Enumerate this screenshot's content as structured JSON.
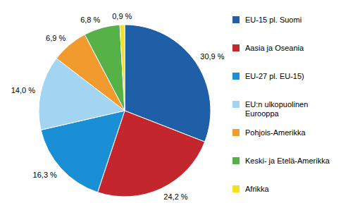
{
  "chart_data": {
    "type": "pie",
    "categories": [
      "EU-15 pl. Suomi",
      "Aasia ja Oseania",
      "EU-27 pl. EU-15)",
      "EU:n ulkopuolinen Eurooppa",
      "Pohjois-Amerikka",
      "Keski- ja Etelä-Amerikka",
      "Afrikka"
    ],
    "values": [
      30.9,
      24.2,
      16.3,
      14.0,
      6.9,
      6.8,
      0.9
    ],
    "value_labels": [
      "30,9 %",
      "24,2 %",
      "16,3 %",
      "14,0 %",
      "6,9 %",
      "6,8 %",
      "0,9 %"
    ],
    "colors": [
      "#1f5fa8",
      "#c3272d",
      "#1b8fd6",
      "#a3d5f2",
      "#f19a2e",
      "#56b146",
      "#f4e01f"
    ],
    "data_labels": true,
    "legend": "right"
  }
}
